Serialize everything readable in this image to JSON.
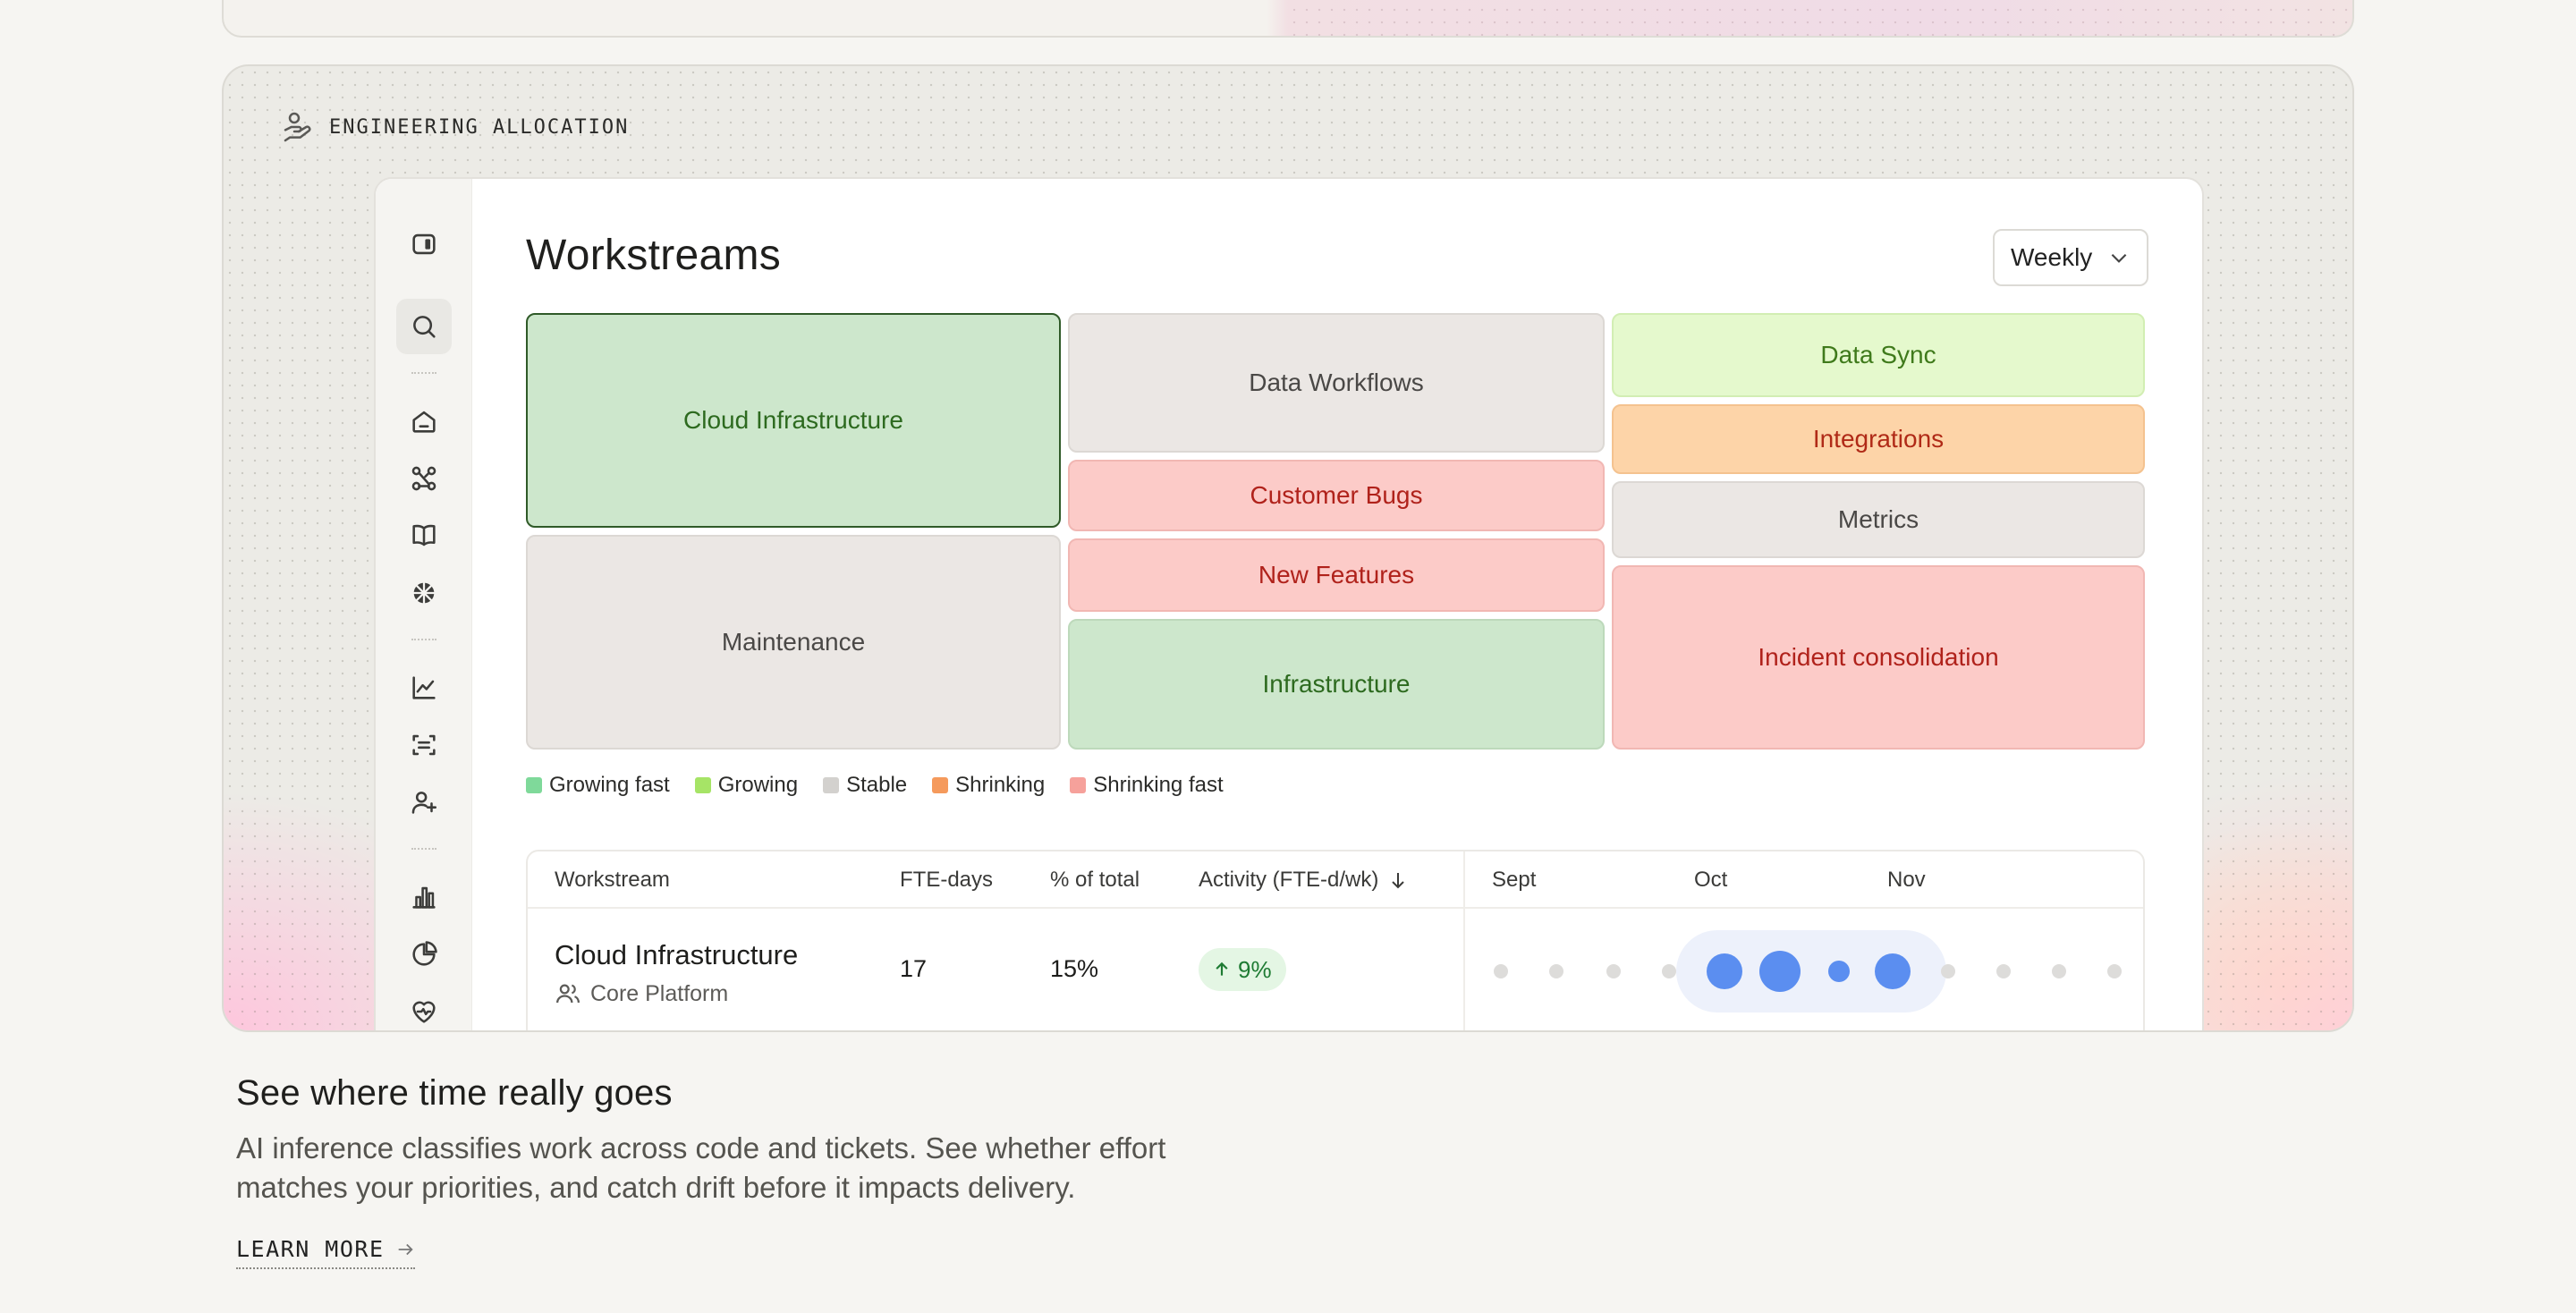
{
  "card": {
    "label": "ENGINEERING ALLOCATION"
  },
  "app": {
    "title": "Workstreams",
    "period": "Weekly",
    "sidebar_icons": [
      "sidebar-toggle-icon",
      "search-icon",
      "home-icon",
      "integrations-icon",
      "book-icon",
      "sparkle-icon",
      "line-chart-icon",
      "scan-icon",
      "user-add-icon",
      "bar-chart-icon",
      "pie-chart-icon",
      "heart-pulse-icon"
    ]
  },
  "treemap": {
    "tiles": [
      {
        "label": "Cloud Infrastructure",
        "trend": "Growing fast",
        "selected": true
      },
      {
        "label": "Maintenance",
        "trend": "Stable"
      },
      {
        "label": "Data Workflows",
        "trend": "Stable"
      },
      {
        "label": "Customer Bugs",
        "trend": "Shrinking fast"
      },
      {
        "label": "New Features",
        "trend": "Shrinking fast"
      },
      {
        "label": "Infrastructure",
        "trend": "Growing fast"
      },
      {
        "label": "Data Sync",
        "trend": "Growing"
      },
      {
        "label": "Integrations",
        "trend": "Shrinking"
      },
      {
        "label": "Metrics",
        "trend": "Stable"
      },
      {
        "label": "Incident consolidation",
        "trend": "Shrinking fast"
      }
    ]
  },
  "legend": [
    {
      "label": "Growing fast",
      "color": "#7fd99a"
    },
    {
      "label": "Growing",
      "color": "#a6e466"
    },
    {
      "label": "Stable",
      "color": "#d3d1ce"
    },
    {
      "label": "Shrinking",
      "color": "#f59a5c"
    },
    {
      "label": "Shrinking fast",
      "color": "#f6a19b"
    }
  ],
  "table": {
    "headers": {
      "workstream": "Workstream",
      "fte_days": "FTE-days",
      "pct_total": "% of total",
      "activity": "Activity (FTE-d/wk)"
    },
    "months": [
      "Sept",
      "Oct",
      "Nov"
    ],
    "rows": [
      {
        "workstream": "Cloud Infrastructure",
        "team": "Core Platform",
        "fte_days": "17",
        "pct_total": "15%",
        "activity": "9%",
        "activity_trend": "up"
      }
    ]
  },
  "feature": {
    "headline": "See where time really goes",
    "description": "AI inference classifies work across code and tickets. See whether effort matches your priorities, and catch drift before it impacts delivery.",
    "cta": "LEARN MORE"
  },
  "colors": {
    "accent_blue": "#5b8ef0",
    "dot_gray": "#dddcda"
  }
}
